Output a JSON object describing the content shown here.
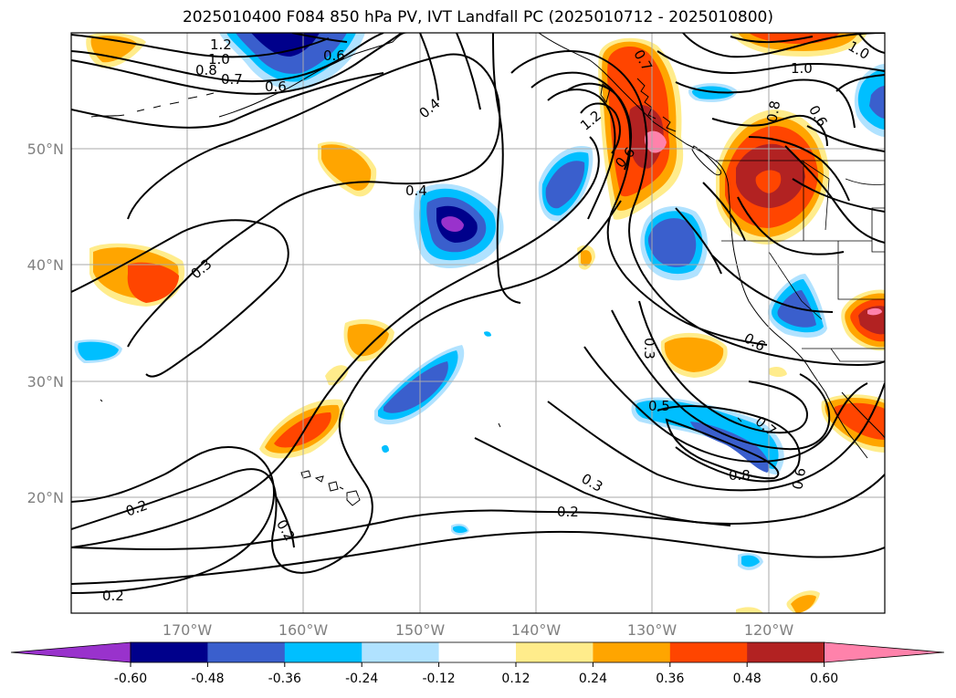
{
  "title": "2025010400 F084 850 hPa PV, IVT Landfall PC (2025010712 - 2025010800)",
  "map": {
    "lat_ticks": [
      "20°N",
      "30°N",
      "40°N",
      "50°N"
    ],
    "lon_ticks": [
      "170°W",
      "160°W",
      "150°W",
      "140°W",
      "130°W",
      "120°W"
    ],
    "contour_labels": [
      "1.2",
      "1.0",
      "0.8",
      "0.7",
      "0.6",
      "0.6",
      "0.4",
      "0.4",
      "1.2",
      "0.7",
      "0.6",
      "1.0",
      "1.0",
      "0.8",
      "0.6",
      "0.3",
      "0.3",
      "0.6",
      "0.5",
      "0.7",
      "0.8",
      "0.6",
      "0.3",
      "0.2",
      "0.2",
      "0.2",
      "0.2"
    ],
    "colors": {
      "grid": "#aaaaaa",
      "contour": "#000000"
    }
  },
  "colorbar": {
    "levels": [
      "-0.60",
      "-0.48",
      "-0.36",
      "-0.24",
      "-0.12",
      "0.12",
      "0.24",
      "0.36",
      "0.48",
      "0.60"
    ],
    "colors": [
      "#9932cc",
      "#00008b",
      "#3a5fcd",
      "#00bfff",
      "#b0e2ff",
      "#ffffff",
      "#ffec8b",
      "#ffa500",
      "#ff4500",
      "#b22222",
      "#ff82ab"
    ]
  }
}
